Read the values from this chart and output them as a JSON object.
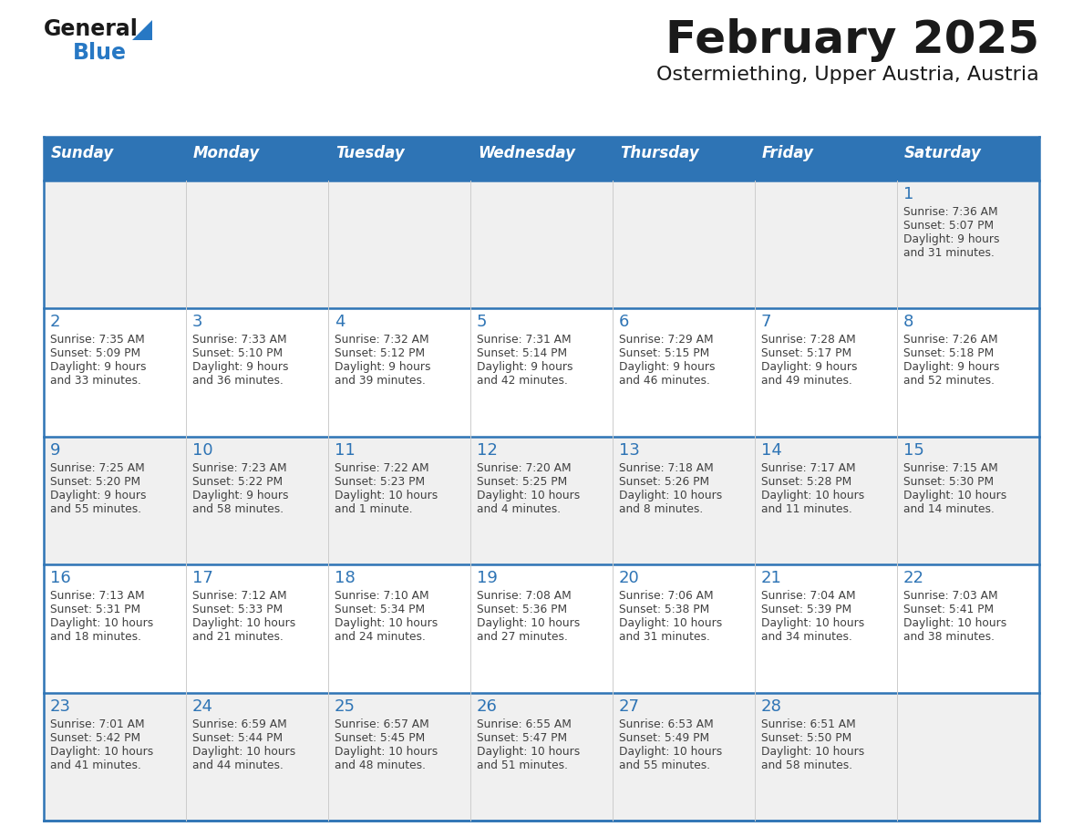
{
  "title": "February 2025",
  "subtitle": "Ostermiething, Upper Austria, Austria",
  "days_of_week": [
    "Sunday",
    "Monday",
    "Tuesday",
    "Wednesday",
    "Thursday",
    "Friday",
    "Saturday"
  ],
  "header_bg": "#2E74B5",
  "header_text": "#FFFFFF",
  "row_bg_odd": "#F0F0F0",
  "row_bg_even": "#FFFFFF",
  "cell_border_color": "#2E74B5",
  "day_number_color": "#2E74B5",
  "cell_text_color": "#404040",
  "title_color": "#1a1a1a",
  "subtitle_color": "#1a1a1a",
  "logo_general_color": "#1a1a1a",
  "logo_blue_color": "#2778C4",
  "calendar": [
    [
      null,
      null,
      null,
      null,
      null,
      null,
      {
        "day": 1,
        "sunrise": "7:36 AM",
        "sunset": "5:07 PM",
        "daylight": "9 hours\nand 31 minutes."
      }
    ],
    [
      {
        "day": 2,
        "sunrise": "7:35 AM",
        "sunset": "5:09 PM",
        "daylight": "9 hours\nand 33 minutes."
      },
      {
        "day": 3,
        "sunrise": "7:33 AM",
        "sunset": "5:10 PM",
        "daylight": "9 hours\nand 36 minutes."
      },
      {
        "day": 4,
        "sunrise": "7:32 AM",
        "sunset": "5:12 PM",
        "daylight": "9 hours\nand 39 minutes."
      },
      {
        "day": 5,
        "sunrise": "7:31 AM",
        "sunset": "5:14 PM",
        "daylight": "9 hours\nand 42 minutes."
      },
      {
        "day": 6,
        "sunrise": "7:29 AM",
        "sunset": "5:15 PM",
        "daylight": "9 hours\nand 46 minutes."
      },
      {
        "day": 7,
        "sunrise": "7:28 AM",
        "sunset": "5:17 PM",
        "daylight": "9 hours\nand 49 minutes."
      },
      {
        "day": 8,
        "sunrise": "7:26 AM",
        "sunset": "5:18 PM",
        "daylight": "9 hours\nand 52 minutes."
      }
    ],
    [
      {
        "day": 9,
        "sunrise": "7:25 AM",
        "sunset": "5:20 PM",
        "daylight": "9 hours\nand 55 minutes."
      },
      {
        "day": 10,
        "sunrise": "7:23 AM",
        "sunset": "5:22 PM",
        "daylight": "9 hours\nand 58 minutes."
      },
      {
        "day": 11,
        "sunrise": "7:22 AM",
        "sunset": "5:23 PM",
        "daylight": "10 hours\nand 1 minute."
      },
      {
        "day": 12,
        "sunrise": "7:20 AM",
        "sunset": "5:25 PM",
        "daylight": "10 hours\nand 4 minutes."
      },
      {
        "day": 13,
        "sunrise": "7:18 AM",
        "sunset": "5:26 PM",
        "daylight": "10 hours\nand 8 minutes."
      },
      {
        "day": 14,
        "sunrise": "7:17 AM",
        "sunset": "5:28 PM",
        "daylight": "10 hours\nand 11 minutes."
      },
      {
        "day": 15,
        "sunrise": "7:15 AM",
        "sunset": "5:30 PM",
        "daylight": "10 hours\nand 14 minutes."
      }
    ],
    [
      {
        "day": 16,
        "sunrise": "7:13 AM",
        "sunset": "5:31 PM",
        "daylight": "10 hours\nand 18 minutes."
      },
      {
        "day": 17,
        "sunrise": "7:12 AM",
        "sunset": "5:33 PM",
        "daylight": "10 hours\nand 21 minutes."
      },
      {
        "day": 18,
        "sunrise": "7:10 AM",
        "sunset": "5:34 PM",
        "daylight": "10 hours\nand 24 minutes."
      },
      {
        "day": 19,
        "sunrise": "7:08 AM",
        "sunset": "5:36 PM",
        "daylight": "10 hours\nand 27 minutes."
      },
      {
        "day": 20,
        "sunrise": "7:06 AM",
        "sunset": "5:38 PM",
        "daylight": "10 hours\nand 31 minutes."
      },
      {
        "day": 21,
        "sunrise": "7:04 AM",
        "sunset": "5:39 PM",
        "daylight": "10 hours\nand 34 minutes."
      },
      {
        "day": 22,
        "sunrise": "7:03 AM",
        "sunset": "5:41 PM",
        "daylight": "10 hours\nand 38 minutes."
      }
    ],
    [
      {
        "day": 23,
        "sunrise": "7:01 AM",
        "sunset": "5:42 PM",
        "daylight": "10 hours\nand 41 minutes."
      },
      {
        "day": 24,
        "sunrise": "6:59 AM",
        "sunset": "5:44 PM",
        "daylight": "10 hours\nand 44 minutes."
      },
      {
        "day": 25,
        "sunrise": "6:57 AM",
        "sunset": "5:45 PM",
        "daylight": "10 hours\nand 48 minutes."
      },
      {
        "day": 26,
        "sunrise": "6:55 AM",
        "sunset": "5:47 PM",
        "daylight": "10 hours\nand 51 minutes."
      },
      {
        "day": 27,
        "sunrise": "6:53 AM",
        "sunset": "5:49 PM",
        "daylight": "10 hours\nand 55 minutes."
      },
      {
        "day": 28,
        "sunrise": "6:51 AM",
        "sunset": "5:50 PM",
        "daylight": "10 hours\nand 58 minutes."
      },
      null
    ]
  ]
}
